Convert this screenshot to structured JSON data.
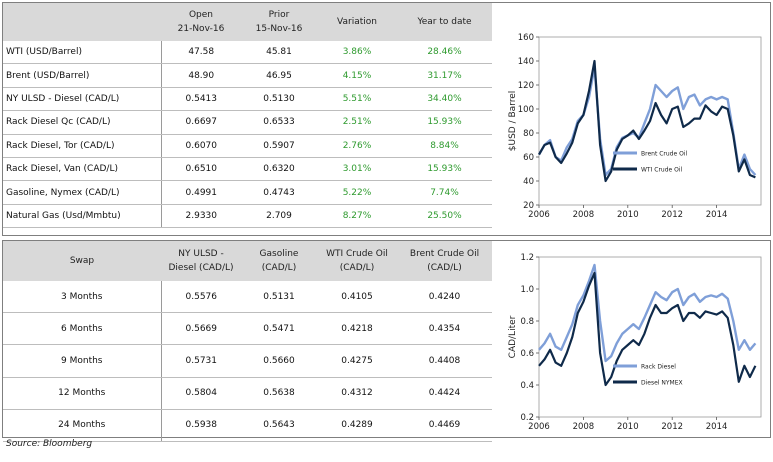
{
  "top_table": {
    "headers": [
      {
        "line1": "",
        "line2": ""
      },
      {
        "line1": "Open",
        "line2": "21-Nov-16"
      },
      {
        "line1": "Prior",
        "line2": "15-Nov-16"
      },
      {
        "line1": "Variation",
        "line2": ""
      },
      {
        "line1": "Year to date",
        "line2": ""
      }
    ],
    "rows": [
      {
        "label": "WTI (USD/Barrel)",
        "open": "47.58",
        "prior": "45.81",
        "variation": "3.86%",
        "ytd": "28.46%"
      },
      {
        "label": "Brent (USD/Barrel)",
        "open": "48.90",
        "prior": "46.95",
        "variation": "4.15%",
        "ytd": "31.17%"
      },
      {
        "label": "NY ULSD - Diesel (CAD/L)",
        "open": "0.5413",
        "prior": "0.5130",
        "variation": "5.51%",
        "ytd": "34.40%"
      },
      {
        "label": "Rack Diesel Qc (CAD/L)",
        "open": "0.6697",
        "prior": "0.6533",
        "variation": "2.51%",
        "ytd": "15.93%"
      },
      {
        "label": "Rack Diesel, Tor (CAD/L)",
        "open": "0.6070",
        "prior": "0.5907",
        "variation": "2.76%",
        "ytd": "8.84%"
      },
      {
        "label": "Rack Diesel, Van (CAD/L)",
        "open": "0.6510",
        "prior": "0.6320",
        "variation": "3.01%",
        "ytd": "15.93%"
      },
      {
        "label": "Gasoline, Nymex (CAD/L)",
        "open": "0.4991",
        "prior": "0.4743",
        "variation": "5.22%",
        "ytd": "7.74%"
      },
      {
        "label": "Natural Gas (Usd/Mmbtu)",
        "open": "2.9330",
        "prior": "2.709",
        "variation": "8.27%",
        "ytd": "25.50%"
      }
    ]
  },
  "swap_table": {
    "headers": [
      {
        "line1": "Swap",
        "line2": ""
      },
      {
        "line1": "NY ULSD -",
        "line2": "Diesel (CAD/L)"
      },
      {
        "line1": "Gasoline",
        "line2": "(CAD/L)"
      },
      {
        "line1": "WTI Crude Oil",
        "line2": "(CAD/L)"
      },
      {
        "line1": "Brent Crude Oil",
        "line2": "(CAD/L)"
      }
    ],
    "rows": [
      {
        "label": "3 Months",
        "diesel": "0.5576",
        "gasoline": "0.5131",
        "wti": "0.4105",
        "brent": "0.4240"
      },
      {
        "label": "6 Months",
        "diesel": "0.5669",
        "gasoline": "0.5471",
        "wti": "0.4218",
        "brent": "0.4354"
      },
      {
        "label": "9 Months",
        "diesel": "0.5731",
        "gasoline": "0.5660",
        "wti": "0.4275",
        "brent": "0.4408"
      },
      {
        "label": "12 Months",
        "diesel": "0.5804",
        "gasoline": "0.5638",
        "wti": "0.4312",
        "brent": "0.4424"
      },
      {
        "label": "24 Months",
        "diesel": "0.5938",
        "gasoline": "0.5643",
        "wti": "0.4289",
        "brent": "0.4469"
      }
    ]
  },
  "source": "Source: Bloomberg",
  "colors": {
    "header_bg": "#d9d9d9",
    "positive": "#2e9a2e",
    "series_light": "#7f9fd8",
    "series_dark": "#0f2a4a"
  },
  "chart_data": [
    {
      "type": "line",
      "ylabel": "$USD / Barrel",
      "xlabel": "",
      "xlim": [
        2006,
        2016
      ],
      "ylim": [
        20,
        160
      ],
      "xticks": [
        2006,
        2008,
        2010,
        2012,
        2014
      ],
      "yticks": [
        20,
        40,
        60,
        80,
        100,
        120,
        140,
        160
      ],
      "grid": false,
      "legend": "center-right",
      "series": [
        {
          "name": "Brent Crude Oil",
          "color": "#7f9fd8",
          "x": [
            2006.0,
            2006.25,
            2006.5,
            2006.75,
            2007.0,
            2007.25,
            2007.5,
            2007.75,
            2008.0,
            2008.25,
            2008.5,
            2008.75,
            2009.0,
            2009.25,
            2009.5,
            2009.75,
            2010.0,
            2010.25,
            2010.5,
            2010.75,
            2011.0,
            2011.25,
            2011.5,
            2011.75,
            2012.0,
            2012.25,
            2012.5,
            2012.75,
            2013.0,
            2013.25,
            2013.5,
            2013.75,
            2014.0,
            2014.25,
            2014.5,
            2014.75,
            2015.0,
            2015.25,
            2015.5,
            2015.75
          ],
          "y": [
            62,
            70,
            74,
            60,
            57,
            68,
            75,
            90,
            95,
            110,
            135,
            75,
            45,
            50,
            68,
            76,
            78,
            80,
            76,
            88,
            100,
            120,
            115,
            110,
            115,
            118,
            100,
            110,
            112,
            103,
            108,
            110,
            108,
            110,
            108,
            80,
            50,
            62,
            50,
            45
          ]
        },
        {
          "name": "WTI Crude Oil",
          "color": "#0f2a4a",
          "x": [
            2006.0,
            2006.25,
            2006.5,
            2006.75,
            2007.0,
            2007.25,
            2007.5,
            2007.75,
            2008.0,
            2008.25,
            2008.5,
            2008.75,
            2009.0,
            2009.25,
            2009.5,
            2009.75,
            2010.0,
            2010.25,
            2010.5,
            2010.75,
            2011.0,
            2011.25,
            2011.5,
            2011.75,
            2012.0,
            2012.25,
            2012.5,
            2012.75,
            2013.0,
            2013.25,
            2013.5,
            2013.75,
            2014.0,
            2014.25,
            2014.5,
            2014.75,
            2015.0,
            2015.25,
            2015.5,
            2015.75
          ],
          "y": [
            62,
            70,
            72,
            60,
            55,
            63,
            72,
            88,
            95,
            115,
            140,
            70,
            40,
            48,
            66,
            75,
            78,
            82,
            75,
            82,
            90,
            105,
            95,
            88,
            100,
            102,
            85,
            88,
            92,
            92,
            103,
            98,
            95,
            102,
            100,
            78,
            48,
            58,
            45,
            43
          ]
        }
      ]
    },
    {
      "type": "line",
      "ylabel": "CAD/Liter",
      "xlabel": "",
      "xlim": [
        2006,
        2016
      ],
      "ylim": [
        0.2,
        1.2
      ],
      "xticks": [
        2006,
        2008,
        2010,
        2012,
        2014
      ],
      "yticks": [
        0.2,
        0.4,
        0.6,
        0.8,
        1.0,
        1.2
      ],
      "grid": false,
      "legend": "bottom-right",
      "series": [
        {
          "name": "Rack Diesel",
          "color": "#7f9fd8",
          "x": [
            2006.0,
            2006.25,
            2006.5,
            2006.75,
            2007.0,
            2007.25,
            2007.5,
            2007.75,
            2008.0,
            2008.25,
            2008.5,
            2008.75,
            2009.0,
            2009.25,
            2009.5,
            2009.75,
            2010.0,
            2010.25,
            2010.5,
            2010.75,
            2011.0,
            2011.25,
            2011.5,
            2011.75,
            2012.0,
            2012.25,
            2012.5,
            2012.75,
            2013.0,
            2013.25,
            2013.5,
            2013.75,
            2014.0,
            2014.25,
            2014.5,
            2014.75,
            2015.0,
            2015.25,
            2015.5,
            2015.75
          ],
          "y": [
            0.62,
            0.66,
            0.72,
            0.64,
            0.62,
            0.7,
            0.78,
            0.9,
            0.96,
            1.05,
            1.15,
            0.8,
            0.55,
            0.58,
            0.66,
            0.72,
            0.75,
            0.78,
            0.75,
            0.82,
            0.9,
            0.98,
            0.95,
            0.93,
            0.98,
            1.0,
            0.9,
            0.95,
            0.97,
            0.92,
            0.95,
            0.96,
            0.95,
            0.97,
            0.94,
            0.8,
            0.62,
            0.68,
            0.62,
            0.66
          ]
        },
        {
          "name": "Diesel NYMEX",
          "color": "#0f2a4a",
          "x": [
            2006.0,
            2006.25,
            2006.5,
            2006.75,
            2007.0,
            2007.25,
            2007.5,
            2007.75,
            2008.0,
            2008.25,
            2008.5,
            2008.75,
            2009.0,
            2009.25,
            2009.5,
            2009.75,
            2010.0,
            2010.25,
            2010.5,
            2010.75,
            2011.0,
            2011.25,
            2011.5,
            2011.75,
            2012.0,
            2012.25,
            2012.5,
            2012.75,
            2013.0,
            2013.25,
            2013.5,
            2013.75,
            2014.0,
            2014.25,
            2014.5,
            2014.75,
            2015.0,
            2015.25,
            2015.5,
            2015.75
          ],
          "y": [
            0.52,
            0.56,
            0.62,
            0.54,
            0.52,
            0.6,
            0.7,
            0.85,
            0.92,
            1.02,
            1.1,
            0.6,
            0.4,
            0.45,
            0.55,
            0.62,
            0.65,
            0.68,
            0.65,
            0.72,
            0.82,
            0.9,
            0.85,
            0.85,
            0.88,
            0.9,
            0.8,
            0.85,
            0.85,
            0.82,
            0.86,
            0.85,
            0.84,
            0.86,
            0.82,
            0.65,
            0.42,
            0.52,
            0.45,
            0.52
          ]
        }
      ]
    }
  ]
}
